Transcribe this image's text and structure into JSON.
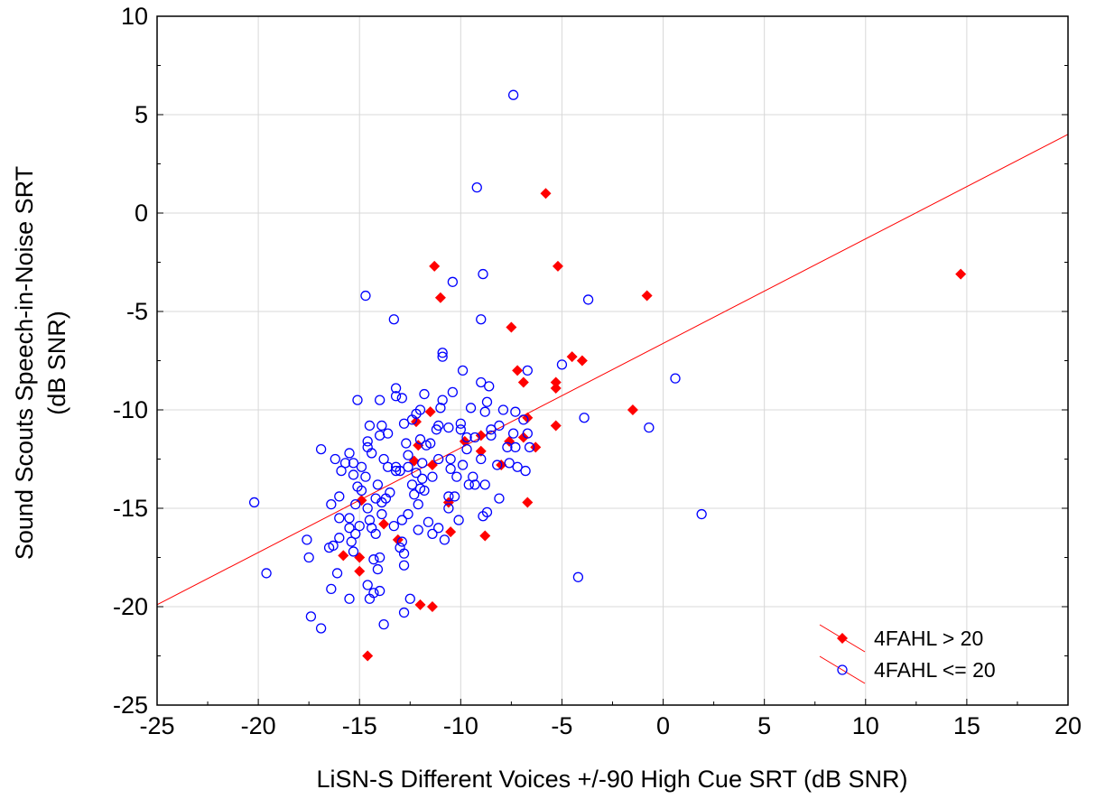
{
  "chart_data": {
    "type": "scatter",
    "xlabel": "LiSN-S Different Voices +/-90 High Cue SRT (dB SNR)",
    "ylabel_line1": "Sound Scouts Speech-in-Noise SRT",
    "ylabel_line2": "(dB SNR)",
    "xlim": [
      -25,
      20
    ],
    "ylim": [
      -25,
      10
    ],
    "xticks": [
      -25,
      -20,
      -15,
      -10,
      -5,
      0,
      5,
      10,
      15,
      20
    ],
    "yticks": [
      -25,
      -20,
      -15,
      -10,
      -5,
      0,
      5,
      10
    ],
    "xtick_labels": [
      "-25",
      "-20",
      "-15",
      "-10",
      "-5",
      "0",
      "5",
      "10",
      "15",
      "20"
    ],
    "ytick_labels": [
      "-25",
      "-20",
      "-15",
      "-10",
      "-5",
      "0",
      "5",
      "10"
    ],
    "grid": true,
    "legend_position": "bottom-right",
    "fit_line": {
      "from": [
        -25,
        -19.9
      ],
      "to": [
        20,
        4.0
      ],
      "color": "#ff0000"
    },
    "series": [
      {
        "name": "4FAHL > 20",
        "marker": "diamond",
        "color": "#ff0000",
        "points": [
          [
            -5.8,
            1.0
          ],
          [
            -11.3,
            -2.7
          ],
          [
            -5.2,
            -2.7
          ],
          [
            -11.0,
            -4.3
          ],
          [
            -0.8,
            -4.2
          ],
          [
            14.7,
            -3.1
          ],
          [
            -7.5,
            -5.8
          ],
          [
            -7.2,
            -8.0
          ],
          [
            -6.9,
            -8.6
          ],
          [
            -5.3,
            -8.6
          ],
          [
            -5.3,
            -8.9
          ],
          [
            -4.5,
            -7.3
          ],
          [
            -4.0,
            -7.5
          ],
          [
            -1.5,
            -10.0
          ],
          [
            -6.7,
            -10.4
          ],
          [
            -5.3,
            -10.8
          ],
          [
            -6.3,
            -11.9
          ],
          [
            -6.9,
            -11.4
          ],
          [
            -7.6,
            -11.6
          ],
          [
            -8.0,
            -12.8
          ],
          [
            -9.0,
            -11.3
          ],
          [
            -9.0,
            -12.1
          ],
          [
            -9.8,
            -11.6
          ],
          [
            -11.5,
            -10.1
          ],
          [
            -12.2,
            -10.6
          ],
          [
            -12.1,
            -11.8
          ],
          [
            -12.3,
            -12.6
          ],
          [
            -11.4,
            -12.8
          ],
          [
            -10.6,
            -14.7
          ],
          [
            -6.7,
            -14.7
          ],
          [
            -10.5,
            -16.2
          ],
          [
            -8.8,
            -16.4
          ],
          [
            -14.9,
            -14.6
          ],
          [
            -13.8,
            -15.8
          ],
          [
            -13.1,
            -16.6
          ],
          [
            -15.8,
            -17.4
          ],
          [
            -15.0,
            -17.5
          ],
          [
            -15.0,
            -18.2
          ],
          [
            -12.0,
            -19.9
          ],
          [
            -11.4,
            -20.0
          ],
          [
            -14.6,
            -22.5
          ]
        ]
      },
      {
        "name": "4FAHL <= 20",
        "marker": "circle",
        "color": "#0000ff",
        "points": [
          [
            -7.4,
            6.0
          ],
          [
            -9.2,
            1.3
          ],
          [
            -8.9,
            -3.1
          ],
          [
            -10.4,
            -3.5
          ],
          [
            -3.7,
            -4.4
          ],
          [
            -14.7,
            -4.2
          ],
          [
            -13.3,
            -5.4
          ],
          [
            -9.0,
            -5.4
          ],
          [
            -10.9,
            -7.1
          ],
          [
            -10.9,
            -7.3
          ],
          [
            -5.0,
            -7.7
          ],
          [
            -6.7,
            -8.0
          ],
          [
            -9.9,
            -8.0
          ],
          [
            -9.0,
            -8.6
          ],
          [
            -8.6,
            -8.8
          ],
          [
            -10.4,
            -9.1
          ],
          [
            0.6,
            -8.4
          ],
          [
            -13.2,
            -8.9
          ],
          [
            -13.2,
            -9.3
          ],
          [
            -12.9,
            -9.4
          ],
          [
            -14.0,
            -9.5
          ],
          [
            -15.1,
            -9.5
          ],
          [
            -11.8,
            -9.2
          ],
          [
            -10.9,
            -9.5
          ],
          [
            -11.0,
            -9.9
          ],
          [
            -12.0,
            -10.0
          ],
          [
            -12.2,
            -10.2
          ],
          [
            -9.5,
            -9.9
          ],
          [
            -8.8,
            -10.1
          ],
          [
            -7.9,
            -10.0
          ],
          [
            -7.3,
            -10.1
          ],
          [
            -6.9,
            -10.5
          ],
          [
            -3.9,
            -10.4
          ],
          [
            -0.7,
            -10.9
          ],
          [
            -13.9,
            -10.8
          ],
          [
            -14.5,
            -10.8
          ],
          [
            -12.4,
            -10.5
          ],
          [
            -11.1,
            -10.8
          ],
          [
            -10.6,
            -10.9
          ],
          [
            -10.0,
            -11.0
          ],
          [
            -9.7,
            -11.4
          ],
          [
            -9.3,
            -11.4
          ],
          [
            -8.5,
            -11.0
          ],
          [
            -8.1,
            -10.8
          ],
          [
            -7.4,
            -11.2
          ],
          [
            -6.7,
            -11.2
          ],
          [
            -6.6,
            -11.9
          ],
          [
            -7.3,
            -11.9
          ],
          [
            -16.9,
            -12.0
          ],
          [
            -16.2,
            -12.5
          ],
          [
            -15.5,
            -12.2
          ],
          [
            -15.3,
            -12.7
          ],
          [
            -15.9,
            -13.1
          ],
          [
            -15.7,
            -12.7
          ],
          [
            -14.9,
            -12.9
          ],
          [
            -14.6,
            -11.9
          ],
          [
            -14.6,
            -11.6
          ],
          [
            -14.0,
            -11.3
          ],
          [
            -13.8,
            -12.5
          ],
          [
            -13.6,
            -12.9
          ],
          [
            -13.2,
            -13.1
          ],
          [
            -13.0,
            -13.1
          ],
          [
            -12.6,
            -12.3
          ],
          [
            -12.6,
            -12.9
          ],
          [
            -12.2,
            -13.2
          ],
          [
            -11.9,
            -13.5
          ],
          [
            -11.9,
            -12.7
          ],
          [
            -11.7,
            -11.8
          ],
          [
            -12.0,
            -11.5
          ],
          [
            -11.2,
            -11.0
          ],
          [
            -11.1,
            -12.5
          ],
          [
            -10.5,
            -12.5
          ],
          [
            -10.5,
            -13.0
          ],
          [
            -9.9,
            -12.8
          ],
          [
            -10.2,
            -13.4
          ],
          [
            -9.6,
            -13.8
          ],
          [
            -9.3,
            -13.8
          ],
          [
            -9.4,
            -13.4
          ],
          [
            -8.2,
            -12.8
          ],
          [
            -7.6,
            -12.7
          ],
          [
            -7.2,
            -12.9
          ],
          [
            -6.8,
            -13.1
          ],
          [
            -8.8,
            -13.8
          ],
          [
            -8.1,
            -14.5
          ],
          [
            -10.6,
            -14.4
          ],
          [
            -10.6,
            -15.0
          ],
          [
            -10.1,
            -15.6
          ],
          [
            -11.1,
            -16.0
          ],
          [
            -11.4,
            -16.3
          ],
          [
            -10.8,
            -16.6
          ],
          [
            -8.9,
            -15.4
          ],
          [
            -8.7,
            -15.2
          ],
          [
            -12.1,
            -14.8
          ],
          [
            -12.3,
            -14.3
          ],
          [
            -12.6,
            -15.3
          ],
          [
            -12.9,
            -15.6
          ],
          [
            -13.3,
            -15.9
          ],
          [
            -12.9,
            -16.7
          ],
          [
            -12.8,
            -17.3
          ],
          [
            -12.8,
            -17.9
          ],
          [
            -13.5,
            -14.2
          ],
          [
            -13.9,
            -14.7
          ],
          [
            -14.2,
            -14.5
          ],
          [
            -14.6,
            -15.0
          ],
          [
            -14.9,
            -14.1
          ],
          [
            -15.2,
            -14.8
          ],
          [
            -15.5,
            -15.5
          ],
          [
            -15.5,
            -16.0
          ],
          [
            -15.4,
            -16.7
          ],
          [
            -15.2,
            -16.3
          ],
          [
            -15.0,
            -15.9
          ],
          [
            -14.4,
            -16.0
          ],
          [
            -14.2,
            -16.3
          ],
          [
            -14.5,
            -15.6
          ],
          [
            -13.9,
            -15.3
          ],
          [
            -16.0,
            -14.4
          ],
          [
            -16.4,
            -14.8
          ],
          [
            -16.0,
            -15.5
          ],
          [
            -16.0,
            -16.5
          ],
          [
            -16.3,
            -16.9
          ],
          [
            -16.5,
            -17.0
          ],
          [
            -15.3,
            -17.2
          ],
          [
            -14.3,
            -17.6
          ],
          [
            -14.0,
            -17.5
          ],
          [
            -13.0,
            -17.0
          ],
          [
            -16.1,
            -18.3
          ],
          [
            -17.6,
            -16.6
          ],
          [
            -17.5,
            -17.5
          ],
          [
            -19.6,
            -18.3
          ],
          [
            -20.2,
            -14.7
          ],
          [
            -14.1,
            -18.1
          ],
          [
            -14.6,
            -18.9
          ],
          [
            -14.3,
            -19.3
          ],
          [
            -14.0,
            -19.2
          ],
          [
            -16.4,
            -19.1
          ],
          [
            -15.5,
            -19.6
          ],
          [
            -14.5,
            -19.6
          ],
          [
            -13.8,
            -20.9
          ],
          [
            -12.8,
            -20.3
          ],
          [
            -12.5,
            -19.6
          ],
          [
            -16.9,
            -21.1
          ],
          [
            -17.4,
            -20.5
          ],
          [
            -11.5,
            -11.7
          ],
          [
            -11.4,
            -13.4
          ],
          [
            -12.0,
            -14.0
          ],
          [
            -9.7,
            -12.0
          ],
          [
            -8.5,
            -11.3
          ],
          [
            -7.7,
            -11.9
          ],
          [
            -4.2,
            -18.5
          ],
          [
            1.9,
            -15.3
          ],
          [
            -12.7,
            -11.7
          ],
          [
            -13.2,
            -12.9
          ],
          [
            -12.4,
            -13.8
          ],
          [
            -11.8,
            -14.1
          ],
          [
            -14.7,
            -13.4
          ],
          [
            -15.1,
            -13.9
          ],
          [
            -14.1,
            -13.8
          ],
          [
            -13.7,
            -14.5
          ],
          [
            -12.1,
            -16.1
          ],
          [
            -11.6,
            -15.7
          ],
          [
            -10.3,
            -14.4
          ],
          [
            -9.0,
            -12.5
          ],
          [
            -10.0,
            -10.7
          ],
          [
            -8.7,
            -9.6
          ],
          [
            -12.8,
            -10.7
          ],
          [
            -13.6,
            -11.2
          ],
          [
            -14.4,
            -12.2
          ],
          [
            -15.3,
            -13.3
          ]
        ]
      }
    ]
  }
}
